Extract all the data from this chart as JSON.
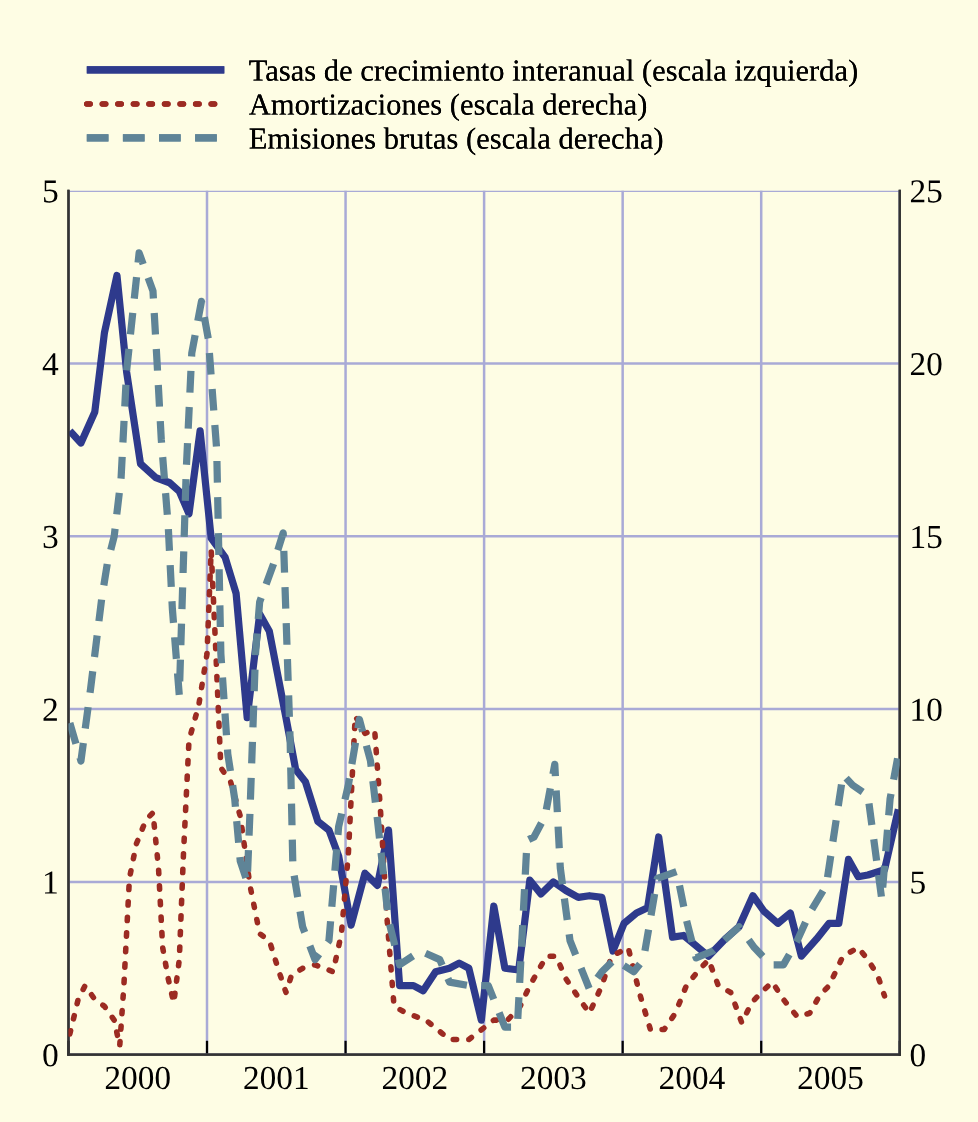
{
  "chart_data": {
    "type": "line",
    "xlim": [
      2000,
      2006
    ],
    "ylim": [
      0,
      5
    ],
    "yticks": [
      0,
      1,
      2,
      3,
      4,
      5
    ],
    "y2lim": [
      0,
      25
    ],
    "y2ticks": [
      0,
      5,
      10,
      15,
      20,
      25
    ],
    "xticks": [
      {
        "value": 2000,
        "label": null
      },
      {
        "value": 2000.5,
        "label": "2000"
      },
      {
        "value": 2001,
        "label": null
      },
      {
        "value": 2001.5,
        "label": "2001"
      },
      {
        "value": 2002,
        "label": null
      },
      {
        "value": 2002.5,
        "label": "2002"
      },
      {
        "value": 2003,
        "label": null
      },
      {
        "value": 2003.5,
        "label": "2003"
      },
      {
        "value": 2004,
        "label": null
      },
      {
        "value": 2004.5,
        "label": "2004"
      },
      {
        "value": 2005,
        "label": null
      },
      {
        "value": 2005.5,
        "label": "2005"
      },
      {
        "value": 2006,
        "label": null
      }
    ],
    "grid": true,
    "legend": "top",
    "series": [
      {
        "name": "Tasas de crecimiento interanual (escala izquierda)",
        "color": "#2e3a8c",
        "line_style": "solid",
        "x": [
          2000.01,
          2000.09,
          2000.19,
          2000.26,
          2000.35,
          2000.42,
          2000.52,
          2000.63,
          2000.73,
          2000.8,
          2000.87,
          2000.95,
          2001.03,
          2001.13,
          2001.21,
          2001.29,
          2001.38,
          2001.45,
          2001.57,
          2001.64,
          2001.71,
          2001.8,
          2001.88,
          2001.95,
          2002.04,
          2002.14,
          2002.23,
          2002.31,
          2002.39,
          2002.49,
          2002.56,
          2002.65,
          2002.75,
          2002.82,
          2002.89,
          2002.98,
          2003.07,
          2003.15,
          2003.25,
          2003.33,
          2003.41,
          2003.5,
          2003.59,
          2003.68,
          2003.76,
          2003.85,
          2003.93,
          2004.01,
          2004.1,
          2004.18,
          2004.26,
          2004.36,
          2004.44,
          2004.53,
          2004.62,
          2004.74,
          2004.84,
          2004.94,
          2005.02,
          2005.12,
          2005.21,
          2005.29,
          2005.4,
          2005.49,
          2005.56,
          2005.63,
          2005.7,
          2005.77,
          2005.89,
          2005.99
        ],
        "values": [
          3.61,
          3.54,
          3.72,
          4.18,
          4.51,
          3.95,
          3.42,
          3.34,
          3.31,
          3.26,
          3.13,
          3.61,
          2.99,
          2.88,
          2.67,
          1.95,
          2.55,
          2.45,
          1.95,
          1.65,
          1.58,
          1.35,
          1.3,
          1.15,
          0.75,
          1.05,
          0.98,
          1.3,
          0.4,
          0.4,
          0.37,
          0.48,
          0.5,
          0.53,
          0.5,
          0.2,
          0.86,
          0.5,
          0.49,
          1.01,
          0.93,
          1.0,
          0.95,
          0.91,
          0.92,
          0.91,
          0.6,
          0.76,
          0.82,
          0.85,
          1.26,
          0.68,
          0.69,
          0.63,
          0.57,
          0.67,
          0.74,
          0.92,
          0.83,
          0.76,
          0.82,
          0.57,
          0.67,
          0.76,
          0.76,
          1.13,
          1.03,
          1.04,
          1.07,
          1.42
        ]
      },
      {
        "name": "Amortizaciones (escala derecha)",
        "color": "#9c2b22",
        "line_style": "dotted",
        "axis": "y2",
        "x": [
          2000.01,
          2000.07,
          2000.12,
          2000.19,
          2000.26,
          2000.33,
          2000.37,
          2000.4,
          2000.44,
          2000.49,
          2000.56,
          2000.61,
          2000.65,
          2000.68,
          2000.72,
          2000.76,
          2000.8,
          2000.83,
          2000.87,
          2000.94,
          2001.0,
          2001.03,
          2001.06,
          2001.1,
          2001.17,
          2001.24,
          2001.31,
          2001.38,
          2001.45,
          2001.52,
          2001.57,
          2001.61,
          2001.69,
          2001.78,
          2001.91,
          2001.97,
          2002.02,
          2002.07,
          2002.14,
          2002.21,
          2002.25,
          2002.3,
          2002.35,
          2002.44,
          2002.58,
          2002.75,
          2002.89,
          2003.07,
          2003.17,
          2003.26,
          2003.33,
          2003.45,
          2003.52,
          2003.59,
          2003.69,
          2003.76,
          2003.85,
          2003.92,
          2004.04,
          2004.12,
          2004.2,
          2004.3,
          2004.38,
          2004.46,
          2004.54,
          2004.62,
          2004.69,
          2004.78,
          2004.86,
          2004.93,
          2005.0,
          2005.08,
          2005.16,
          2005.26,
          2005.35,
          2005.42,
          2005.49,
          2005.59,
          2005.7,
          2005.77,
          2005.84,
          2005.89
        ],
        "values": [
          0.6,
          1.6,
          2.0,
          1.6,
          1.4,
          1.0,
          0.25,
          2.0,
          5.1,
          6.1,
          6.8,
          7.0,
          5.4,
          3.1,
          2.2,
          1.5,
          2.75,
          5.8,
          9.1,
          10.1,
          11.6,
          14.6,
          12.0,
          8.3,
          7.9,
          6.9,
          4.9,
          3.5,
          3.3,
          2.4,
          1.8,
          2.3,
          2.5,
          2.6,
          2.4,
          3.5,
          5.8,
          9.8,
          9.3,
          9.4,
          7.2,
          3.9,
          1.4,
          1.2,
          1.0,
          0.44,
          0.44,
          1.0,
          1.0,
          1.4,
          2.0,
          2.85,
          2.85,
          2.2,
          1.6,
          1.2,
          2.0,
          2.85,
          3.1,
          1.8,
          0.73,
          0.73,
          1.2,
          2.0,
          2.4,
          2.75,
          2.0,
          1.8,
          0.92,
          1.5,
          1.8,
          2.1,
          1.6,
          1.1,
          1.2,
          1.7,
          2.0,
          2.85,
          3.1,
          2.75,
          2.3,
          1.7
        ]
      },
      {
        "name": "Emisiones brutas (escala derecha)",
        "color": "#5f8497",
        "line_style": "dashed",
        "axis": "y2",
        "x": [
          2000.01,
          2000.09,
          2000.16,
          2000.24,
          2000.28,
          2000.33,
          2000.38,
          2000.42,
          2000.51,
          2000.61,
          2000.64,
          2000.67,
          2000.72,
          2000.75,
          2000.8,
          2000.85,
          2000.89,
          2000.96,
          2001.01,
          2001.07,
          2001.1,
          2001.15,
          2001.2,
          2001.24,
          2001.29,
          2001.31,
          2001.35,
          2001.38,
          2001.48,
          2001.55,
          2001.57,
          2001.6,
          2001.62,
          2001.69,
          2001.78,
          2001.88,
          2001.95,
          2002.02,
          2002.1,
          2002.18,
          2002.23,
          2002.31,
          2002.39,
          2002.54,
          2002.68,
          2002.75,
          2002.89,
          2003.03,
          2003.15,
          2003.24,
          2003.31,
          2003.36,
          2003.44,
          2003.51,
          2003.55,
          2003.62,
          2003.71,
          2003.76,
          2003.85,
          2003.94,
          2004.08,
          2004.15,
          2004.25,
          2004.39,
          2004.46,
          2004.53,
          2004.65,
          2004.84,
          2004.95,
          2005.07,
          2005.16,
          2005.26,
          2005.35,
          2005.47,
          2005.59,
          2005.66,
          2005.77,
          2005.87,
          2005.93,
          2005.99
        ],
        "values": [
          9.6,
          8.5,
          10.6,
          13.2,
          14.2,
          15,
          16.7,
          19.8,
          23.2,
          22.1,
          20,
          17.8,
          15.3,
          12.9,
          10.4,
          16.9,
          20.3,
          21.8,
          20.7,
          17.5,
          11.6,
          8.7,
          7.4,
          5.6,
          5.0,
          7.0,
          11.6,
          13.1,
          14.2,
          15.1,
          12.7,
          9.1,
          5.4,
          3.7,
          2.75,
          3.3,
          6.6,
          7.8,
          9.7,
          8.5,
          6.8,
          3.9,
          2.6,
          3.0,
          2.75,
          2.1,
          2.0,
          2.0,
          0.8,
          0.8,
          6.2,
          6.3,
          6.9,
          8.4,
          5.4,
          3.3,
          2.4,
          1.9,
          2.4,
          2.75,
          2.4,
          2.75,
          5.1,
          5.3,
          3.9,
          2.8,
          3.0,
          3.7,
          3.1,
          2.6,
          2.6,
          3.3,
          4.1,
          4.9,
          8.1,
          7.8,
          7.5,
          4.5,
          7.4,
          8.7
        ]
      }
    ]
  }
}
